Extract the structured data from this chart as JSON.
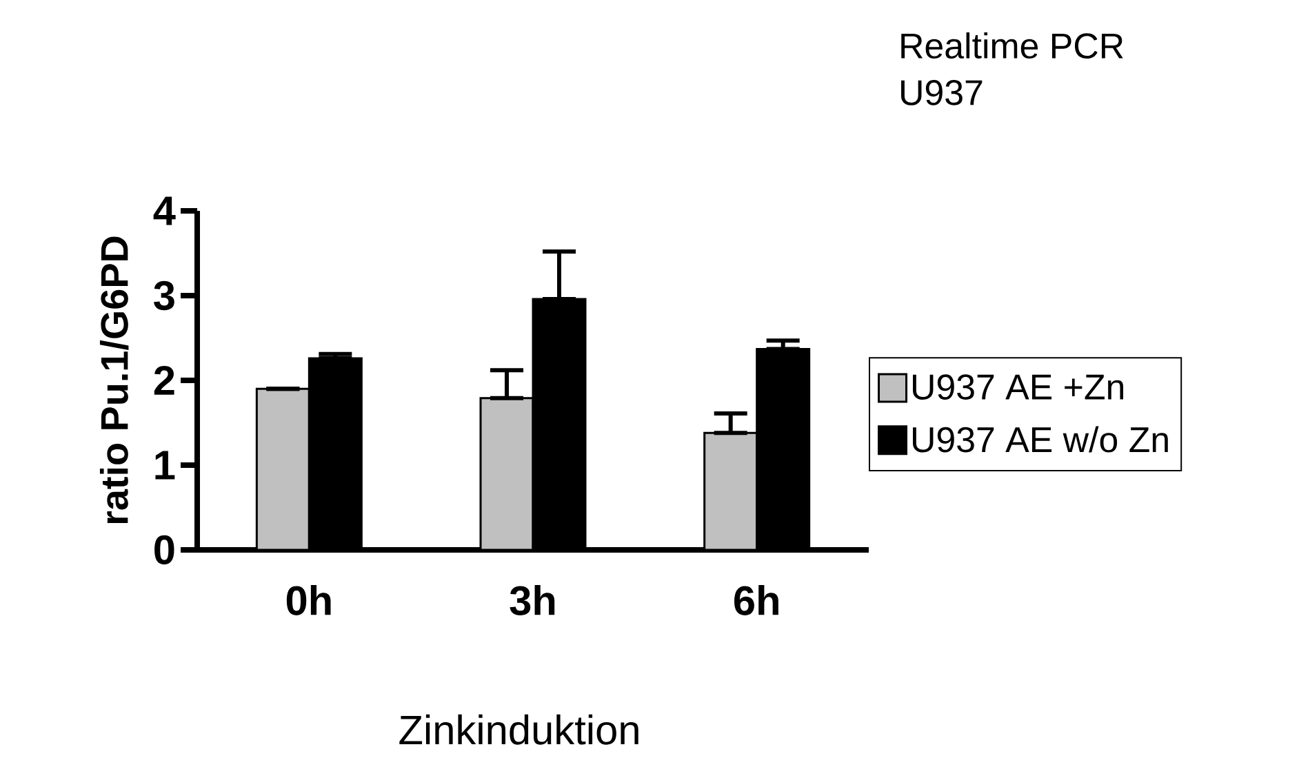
{
  "chart_data": {
    "type": "bar",
    "title": "Realtime PCR",
    "subtitle": "U937",
    "xlabel": "Zinkinduktion",
    "ylabel": "ratio Pu.1/G6PD",
    "categories": [
      "0h",
      "3h",
      "6h"
    ],
    "series": [
      {
        "name": "U937 AE +Zn",
        "color": "#c0c0c0",
        "values": [
          1.9,
          1.79,
          1.38
        ],
        "errors": [
          null,
          [
            1.79,
            2.12
          ],
          [
            1.38,
            1.61
          ]
        ]
      },
      {
        "name": "U937 AE w/o Zn",
        "color": "#000000",
        "values": [
          2.26,
          2.96,
          2.37
        ],
        "errors": [
          [
            2.26,
            2.31
          ],
          [
            2.96,
            3.52
          ],
          [
            2.37,
            2.47
          ]
        ]
      }
    ],
    "ylim": [
      0,
      4
    ],
    "yticks": [
      0,
      1,
      2,
      3,
      4
    ],
    "legend": "right"
  }
}
